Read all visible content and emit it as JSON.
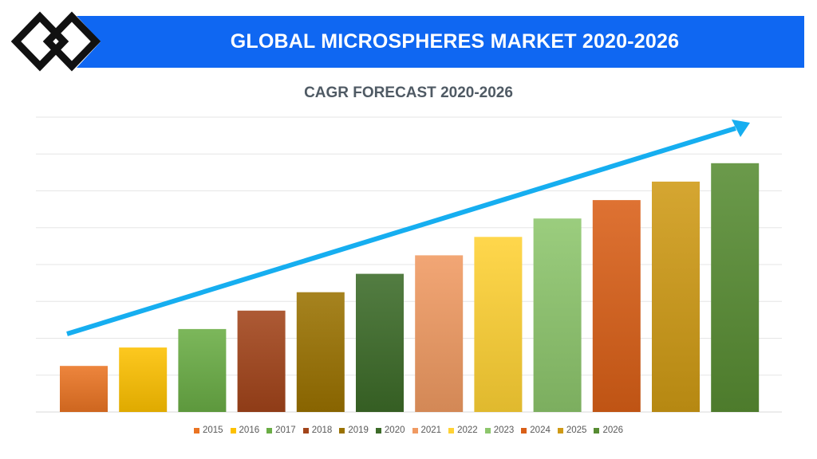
{
  "header": {
    "title": "GLOBAL MICROSPHERES MARKET 2020-2026"
  },
  "chart_data": {
    "type": "bar",
    "title": "CAGR FORECAST 2020-2026",
    "xlabel": "",
    "ylabel": "",
    "grid": true,
    "legend_position": "bottom",
    "trend_arrow": true,
    "ylim": [
      0,
      8
    ],
    "categories": [
      "2015",
      "2016",
      "2017",
      "2018",
      "2019",
      "2020",
      "2021",
      "2022",
      "2023",
      "2024",
      "2025",
      "2026"
    ],
    "values": [
      1.25,
      1.75,
      2.25,
      2.75,
      3.25,
      3.75,
      4.25,
      4.75,
      5.25,
      5.75,
      6.25,
      6.75
    ],
    "colors": [
      "#ea7423",
      "#fdc100",
      "#6aad45",
      "#a2441a",
      "#9a7200",
      "#3c6b28",
      "#f09a62",
      "#ffd234",
      "#8dc66c",
      "#d95f17",
      "#cf9a15",
      "#578c32"
    ]
  },
  "colors": {
    "banner": "#0f67f2",
    "arrow": "#16aef0",
    "logo": "#111111"
  }
}
